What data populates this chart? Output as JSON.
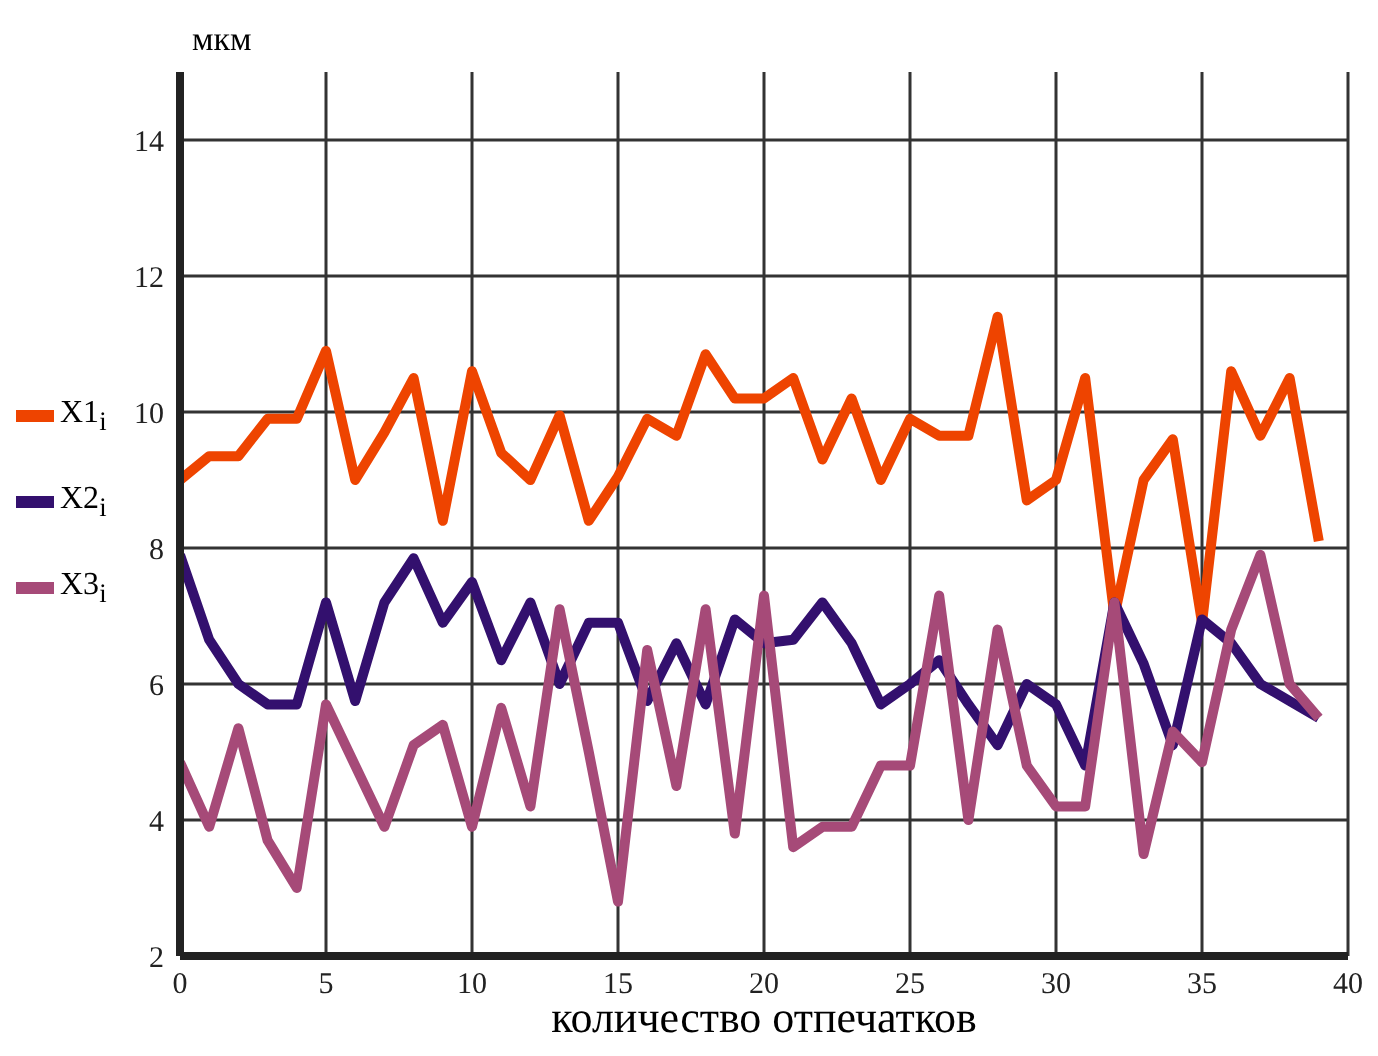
{
  "chart_data": {
    "type": "line",
    "xlabel": "количество отпечатков",
    "ylabel": "мкм",
    "x": [
      0,
      1,
      2,
      3,
      4,
      5,
      6,
      7,
      8,
      9,
      10,
      11,
      12,
      13,
      14,
      15,
      16,
      17,
      18,
      19,
      20,
      21,
      22,
      23,
      24,
      25,
      26,
      27,
      28,
      29,
      30,
      31,
      32,
      33,
      34,
      35,
      36,
      37,
      38,
      39
    ],
    "series": [
      {
        "name": "X1$_{i}$",
        "color": "#ee4400",
        "values": [
          9.0,
          9.35,
          9.35,
          9.9,
          9.9,
          10.9,
          9.0,
          9.7,
          10.5,
          8.4,
          10.6,
          9.4,
          9.0,
          9.95,
          8.4,
          9.05,
          9.9,
          9.65,
          10.85,
          10.2,
          10.2,
          10.5,
          9.3,
          10.2,
          9.0,
          9.9,
          9.65,
          9.65,
          11.4,
          8.7,
          9.0,
          10.5,
          7.0,
          9.0,
          9.6,
          6.9,
          10.6,
          9.65,
          10.5,
          8.1
        ]
      },
      {
        "name": "X2$_{i}$",
        "color": "#33106e",
        "values": [
          7.9,
          6.65,
          6.0,
          5.7,
          5.7,
          7.2,
          5.75,
          7.2,
          7.85,
          6.9,
          7.5,
          6.35,
          7.2,
          6.0,
          6.9,
          6.9,
          5.75,
          6.6,
          5.7,
          6.95,
          6.6,
          6.65,
          7.2,
          6.6,
          5.7,
          6.0,
          6.35,
          5.7,
          5.1,
          6.0,
          5.7,
          4.8,
          7.2,
          6.3,
          5.1,
          6.95,
          6.6,
          6.0,
          5.75,
          5.5
        ]
      },
      {
        "name": "X3$_{i}$",
        "color": "#a64a78",
        "values": [
          4.85,
          3.9,
          5.35,
          3.7,
          3.0,
          5.7,
          4.8,
          3.9,
          5.1,
          5.4,
          3.9,
          5.65,
          4.2,
          7.1,
          5.0,
          2.8,
          6.5,
          4.5,
          7.1,
          3.8,
          7.3,
          3.6,
          3.9,
          3.9,
          4.8,
          4.8,
          7.3,
          4.0,
          6.8,
          4.8,
          4.2,
          4.2,
          7.2,
          3.5,
          5.3,
          4.85,
          6.8,
          7.9,
          6.0,
          5.5
        ]
      }
    ],
    "xlim": [
      0,
      40
    ],
    "xticks": [
      0,
      5,
      10,
      15,
      20,
      25,
      30,
      35,
      40
    ],
    "ylim": [
      2,
      15
    ],
    "yticks": [
      2,
      4,
      6,
      8,
      10,
      12,
      14
    ],
    "grid": true,
    "legend": "left",
    "marker": "none",
    "line_style": "solid"
  }
}
